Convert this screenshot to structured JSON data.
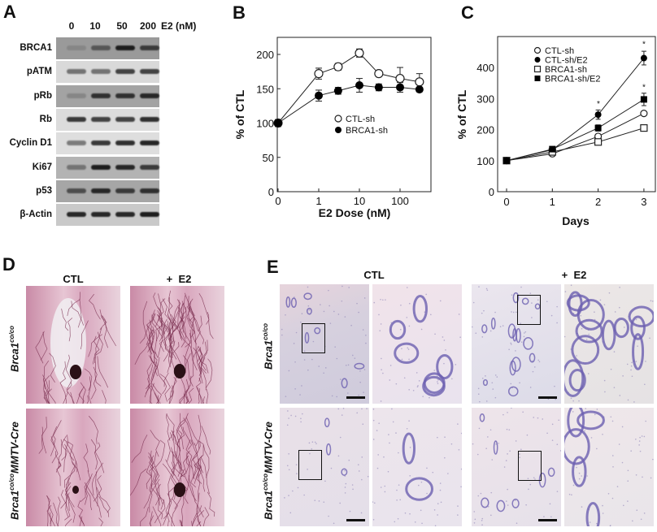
{
  "figure": {
    "panels": {
      "A": {
        "label": "A",
        "treatment_label": "E2 (nM)",
        "lanes": [
          "0",
          "10",
          "50",
          "200"
        ],
        "proteins": [
          "BRCA1",
          "pATM",
          "pRb",
          "Rb",
          "Cyclin D1",
          "Ki67",
          "p53",
          "β-Actin"
        ],
        "band_intensity": [
          [
            0.35,
            0.6,
            0.9,
            0.75
          ],
          [
            0.45,
            0.45,
            0.7,
            0.7
          ],
          [
            0.35,
            0.8,
            0.8,
            0.85
          ],
          [
            0.75,
            0.7,
            0.7,
            0.8
          ],
          [
            0.4,
            0.75,
            0.8,
            0.85
          ],
          [
            0.45,
            0.9,
            0.85,
            0.75
          ],
          [
            0.65,
            0.85,
            0.75,
            0.8
          ],
          [
            0.85,
            0.85,
            0.85,
            0.9
          ]
        ]
      },
      "B": {
        "label": "B"
      },
      "C": {
        "label": "C"
      },
      "D": {
        "label": "D",
        "columns": [
          "CTL",
          "+  E2"
        ],
        "rows": [
          {
            "gene": "Brca1",
            "sup": "co/co",
            "suffix": ""
          },
          {
            "gene": "Brca1",
            "sup": "co/co",
            "suffix": "MMTV-Cre"
          }
        ]
      },
      "E": {
        "label": "E",
        "columns": [
          "CTL",
          "+  E2"
        ],
        "rows": [
          {
            "gene": "Brca1",
            "sup": "co/co",
            "suffix": ""
          },
          {
            "gene": "Brca1",
            "sup": "co/co",
            "suffix": "MMTV-Cre"
          }
        ]
      }
    }
  },
  "chart_data": [
    {
      "panel": "B",
      "type": "line",
      "title": "",
      "xlabel": "E2 Dose (nM)",
      "ylabel": "% of CTL",
      "x_scale": "log (0 shown at origin)",
      "x": [
        0,
        1,
        3,
        10,
        30,
        100,
        300
      ],
      "x_tick_labels": [
        "0",
        "1",
        "10",
        "100"
      ],
      "y_tick_labels": [
        "0",
        "50",
        "100",
        "150",
        "200"
      ],
      "ylim": [
        0,
        225
      ],
      "legend": [
        "CTL-sh",
        "BRCA1-sh"
      ],
      "legend_position": "center",
      "series": [
        {
          "name": "CTL-sh",
          "marker": "open-circle",
          "values": [
            100,
            172,
            182,
            202,
            172,
            165,
            160
          ],
          "errors": [
            5,
            8,
            5,
            6,
            3,
            16,
            12
          ]
        },
        {
          "name": "BRCA1-sh",
          "marker": "filled-circle",
          "values": [
            100,
            140,
            147,
            155,
            152,
            152,
            149
          ],
          "errors": [
            5,
            8,
            5,
            10,
            5,
            7,
            3
          ]
        }
      ],
      "grid": false
    },
    {
      "panel": "C",
      "type": "line",
      "title": "",
      "xlabel": "Days",
      "ylabel": "% of CTL",
      "x": [
        0,
        1,
        2,
        3
      ],
      "x_tick_labels": [
        "0",
        "1",
        "2",
        "3"
      ],
      "y_tick_labels": [
        "0",
        "100",
        "200",
        "300",
        "400"
      ],
      "ylim": [
        0,
        490
      ],
      "legend": [
        "CTL-sh",
        "CTL-sh/E2",
        "BRCA1-sh",
        "BRCA1-sh/E2"
      ],
      "legend_position": "upper left",
      "series": [
        {
          "name": "CTL-sh",
          "marker": "open-circle",
          "values": [
            100,
            122,
            178,
            252
          ],
          "errors": [
            3,
            4,
            6,
            6
          ]
        },
        {
          "name": "CTL-sh/E2",
          "marker": "filled-circle",
          "values": [
            100,
            135,
            248,
            430
          ],
          "errors": [
            3,
            4,
            15,
            22
          ]
        },
        {
          "name": "BRCA1-sh",
          "marker": "open-square",
          "values": [
            100,
            128,
            160,
            205
          ],
          "errors": [
            3,
            4,
            6,
            5
          ]
        },
        {
          "name": "BRCA1-sh/E2",
          "marker": "filled-square",
          "values": [
            100,
            137,
            205,
            297
          ],
          "errors": [
            3,
            4,
            10,
            20
          ]
        }
      ],
      "annotations": [
        "* at day 2 (CTL-sh/E2, BRCA1-sh/E2)",
        "* at day 3 (CTL-sh/E2, BRCA1-sh/E2)"
      ],
      "grid": false
    }
  ]
}
